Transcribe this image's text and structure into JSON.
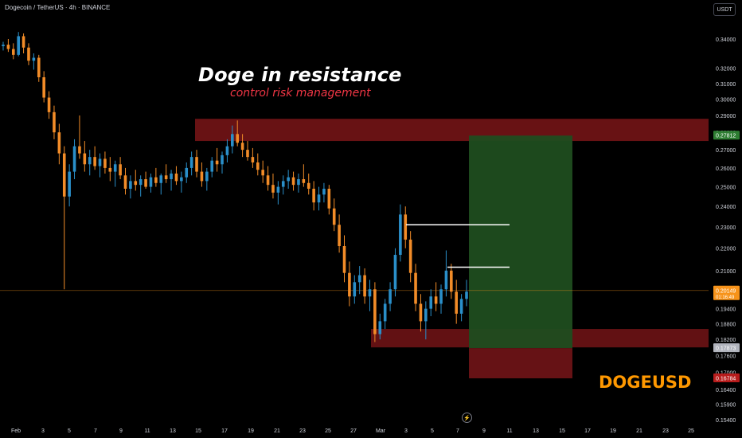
{
  "header": {
    "symbol_title": "Dogecoin / TetherUS · 4h · BINANCE",
    "currency_label": "USDT"
  },
  "annotations": {
    "headline": "Doge in resistance",
    "subline": "control risk management",
    "ticker": "DOGEUSD"
  },
  "icons": {
    "replay": "lightning-icon"
  },
  "colors": {
    "background": "#000000",
    "up_candle": "#2a8fc9",
    "down_candle": "#f28c28",
    "resistance_zone": "#7a1518",
    "profit_zone": "#1f4d1f",
    "loss_zone": "#6b1316",
    "price_line": "#f7931a",
    "ticker": "#ff9800",
    "subline": "#f23645"
  },
  "chart_data": {
    "type": "candlestick",
    "price_axis": {
      "ticks": [
        "0.34000",
        "0.32000",
        "0.31000",
        "0.30000",
        "0.29000",
        "0.28000",
        "0.27000",
        "0.26000",
        "0.25000",
        "0.24000",
        "0.23000",
        "0.22000",
        "0.21000",
        "0.19400",
        "0.18800",
        "0.18200",
        "0.17600",
        "0.17000",
        "0.16400",
        "0.15900",
        "0.15400"
      ],
      "tick_values": [
        0.34,
        0.32,
        0.31,
        0.3,
        0.29,
        0.28,
        0.27,
        0.26,
        0.25,
        0.24,
        0.23,
        0.22,
        0.21,
        0.194,
        0.188,
        0.182,
        0.176,
        0.17,
        0.164,
        0.159,
        0.154
      ],
      "scale": "log"
    },
    "time_axis": {
      "ticks": [
        "Feb",
        "3",
        "5",
        "7",
        "9",
        "11",
        "13",
        "15",
        "17",
        "19",
        "21",
        "23",
        "25",
        "27",
        "Mar",
        "3",
        "5",
        "7",
        "9",
        "11",
        "13",
        "15",
        "17",
        "19",
        "21",
        "23",
        "25"
      ]
    },
    "price_labels": [
      {
        "value": 0.27812,
        "text": "0.27812",
        "color": "#2e7d32"
      },
      {
        "value": 0.20149,
        "text": "0.20149",
        "sub": "01:16:49",
        "color": "#f7931a"
      },
      {
        "value": 0.17873,
        "text": "0.17873",
        "color": "#b0b3bc"
      },
      {
        "value": 0.16784,
        "text": "0.16784",
        "color": "#b71c1c"
      }
    ],
    "zones": [
      {
        "name": "resistance",
        "top": 0.288,
        "bottom": 0.275
      },
      {
        "name": "support",
        "top": 0.186,
        "bottom": 0.179
      },
      {
        "name": "profit-target",
        "top": 0.27812,
        "bottom": 0.17873
      },
      {
        "name": "stop-loss",
        "top": 0.17873,
        "bottom": 0.16784
      }
    ],
    "levels": [
      {
        "name": "swing-high-1",
        "value": 0.231
      },
      {
        "name": "swing-high-2",
        "value": 0.2115
      }
    ],
    "candles": [
      [
        0.335,
        0.338,
        0.332,
        0.336
      ],
      [
        0.336,
        0.34,
        0.331,
        0.333
      ],
      [
        0.333,
        0.337,
        0.326,
        0.329
      ],
      [
        0.329,
        0.345,
        0.328,
        0.342
      ],
      [
        0.342,
        0.344,
        0.33,
        0.334
      ],
      [
        0.334,
        0.337,
        0.322,
        0.325
      ],
      [
        0.325,
        0.33,
        0.319,
        0.327
      ],
      [
        0.327,
        0.329,
        0.311,
        0.314
      ],
      [
        0.314,
        0.318,
        0.298,
        0.301
      ],
      [
        0.301,
        0.305,
        0.288,
        0.292
      ],
      [
        0.292,
        0.296,
        0.276,
        0.28
      ],
      [
        0.28,
        0.285,
        0.262,
        0.268
      ],
      [
        0.268,
        0.272,
        0.202,
        0.245
      ],
      [
        0.245,
        0.262,
        0.24,
        0.258
      ],
      [
        0.258,
        0.276,
        0.254,
        0.272
      ],
      [
        0.272,
        0.29,
        0.265,
        0.268
      ],
      [
        0.268,
        0.275,
        0.258,
        0.262
      ],
      [
        0.262,
        0.27,
        0.256,
        0.266
      ],
      [
        0.266,
        0.272,
        0.259,
        0.261
      ],
      [
        0.261,
        0.268,
        0.255,
        0.265
      ],
      [
        0.265,
        0.269,
        0.257,
        0.26
      ],
      [
        0.26,
        0.266,
        0.253,
        0.258
      ],
      [
        0.258,
        0.264,
        0.25,
        0.262
      ],
      [
        0.262,
        0.266,
        0.254,
        0.256
      ],
      [
        0.256,
        0.26,
        0.246,
        0.249
      ],
      [
        0.249,
        0.256,
        0.244,
        0.253
      ],
      [
        0.253,
        0.259,
        0.248,
        0.251
      ],
      [
        0.251,
        0.256,
        0.245,
        0.254
      ],
      [
        0.254,
        0.258,
        0.249,
        0.25
      ],
      [
        0.25,
        0.257,
        0.247,
        0.255
      ],
      [
        0.255,
        0.26,
        0.25,
        0.252
      ],
      [
        0.252,
        0.257,
        0.246,
        0.256
      ],
      [
        0.256,
        0.262,
        0.252,
        0.254
      ],
      [
        0.254,
        0.259,
        0.248,
        0.257
      ],
      [
        0.257,
        0.261,
        0.251,
        0.253
      ],
      [
        0.253,
        0.258,
        0.247,
        0.255
      ],
      [
        0.255,
        0.263,
        0.252,
        0.26
      ],
      [
        0.26,
        0.269,
        0.256,
        0.266
      ],
      [
        0.266,
        0.27,
        0.255,
        0.258
      ],
      [
        0.258,
        0.263,
        0.25,
        0.253
      ],
      [
        0.253,
        0.26,
        0.248,
        0.258
      ],
      [
        0.258,
        0.266,
        0.255,
        0.264
      ],
      [
        0.264,
        0.271,
        0.258,
        0.262
      ],
      [
        0.262,
        0.269,
        0.257,
        0.267
      ],
      [
        0.267,
        0.276,
        0.263,
        0.272
      ],
      [
        0.272,
        0.284,
        0.268,
        0.279
      ],
      [
        0.279,
        0.287,
        0.272,
        0.274
      ],
      [
        0.274,
        0.279,
        0.266,
        0.27
      ],
      [
        0.27,
        0.275,
        0.264,
        0.266
      ],
      [
        0.266,
        0.271,
        0.26,
        0.263
      ],
      [
        0.263,
        0.268,
        0.256,
        0.259
      ],
      [
        0.259,
        0.264,
        0.252,
        0.256
      ],
      [
        0.256,
        0.261,
        0.248,
        0.251
      ],
      [
        0.251,
        0.257,
        0.244,
        0.247
      ],
      [
        0.247,
        0.253,
        0.241,
        0.25
      ],
      [
        0.25,
        0.256,
        0.246,
        0.253
      ],
      [
        0.253,
        0.259,
        0.249,
        0.255
      ],
      [
        0.255,
        0.258,
        0.248,
        0.251
      ],
      [
        0.251,
        0.257,
        0.247,
        0.254
      ],
      [
        0.254,
        0.262,
        0.25,
        0.252
      ],
      [
        0.252,
        0.257,
        0.246,
        0.249
      ],
      [
        0.249,
        0.253,
        0.238,
        0.242
      ],
      [
        0.242,
        0.25,
        0.238,
        0.246
      ],
      [
        0.246,
        0.252,
        0.242,
        0.249
      ],
      [
        0.249,
        0.251,
        0.236,
        0.239
      ],
      [
        0.239,
        0.244,
        0.228,
        0.231
      ],
      [
        0.231,
        0.236,
        0.218,
        0.221
      ],
      [
        0.221,
        0.226,
        0.205,
        0.209
      ],
      [
        0.209,
        0.214,
        0.195,
        0.199
      ],
      [
        0.199,
        0.208,
        0.196,
        0.205
      ],
      [
        0.205,
        0.212,
        0.2,
        0.208
      ],
      [
        0.208,
        0.211,
        0.196,
        0.199
      ],
      [
        0.199,
        0.206,
        0.193,
        0.202
      ],
      [
        0.202,
        0.205,
        0.181,
        0.184
      ],
      [
        0.184,
        0.192,
        0.182,
        0.189
      ],
      [
        0.189,
        0.198,
        0.186,
        0.196
      ],
      [
        0.196,
        0.205,
        0.193,
        0.202
      ],
      [
        0.202,
        0.22,
        0.199,
        0.217
      ],
      [
        0.217,
        0.241,
        0.214,
        0.236
      ],
      [
        0.236,
        0.24,
        0.22,
        0.224
      ],
      [
        0.224,
        0.228,
        0.205,
        0.209
      ],
      [
        0.209,
        0.213,
        0.193,
        0.196
      ],
      [
        0.196,
        0.2,
        0.185,
        0.189
      ],
      [
        0.189,
        0.197,
        0.182,
        0.194
      ],
      [
        0.194,
        0.202,
        0.191,
        0.199
      ],
      [
        0.199,
        0.205,
        0.193,
        0.196
      ],
      [
        0.196,
        0.204,
        0.192,
        0.202
      ],
      [
        0.202,
        0.219,
        0.199,
        0.21
      ],
      [
        0.21,
        0.213,
        0.198,
        0.201
      ],
      [
        0.201,
        0.206,
        0.188,
        0.192
      ],
      [
        0.192,
        0.2,
        0.189,
        0.198
      ],
      [
        0.198,
        0.206,
        0.195,
        0.201
      ]
    ]
  }
}
